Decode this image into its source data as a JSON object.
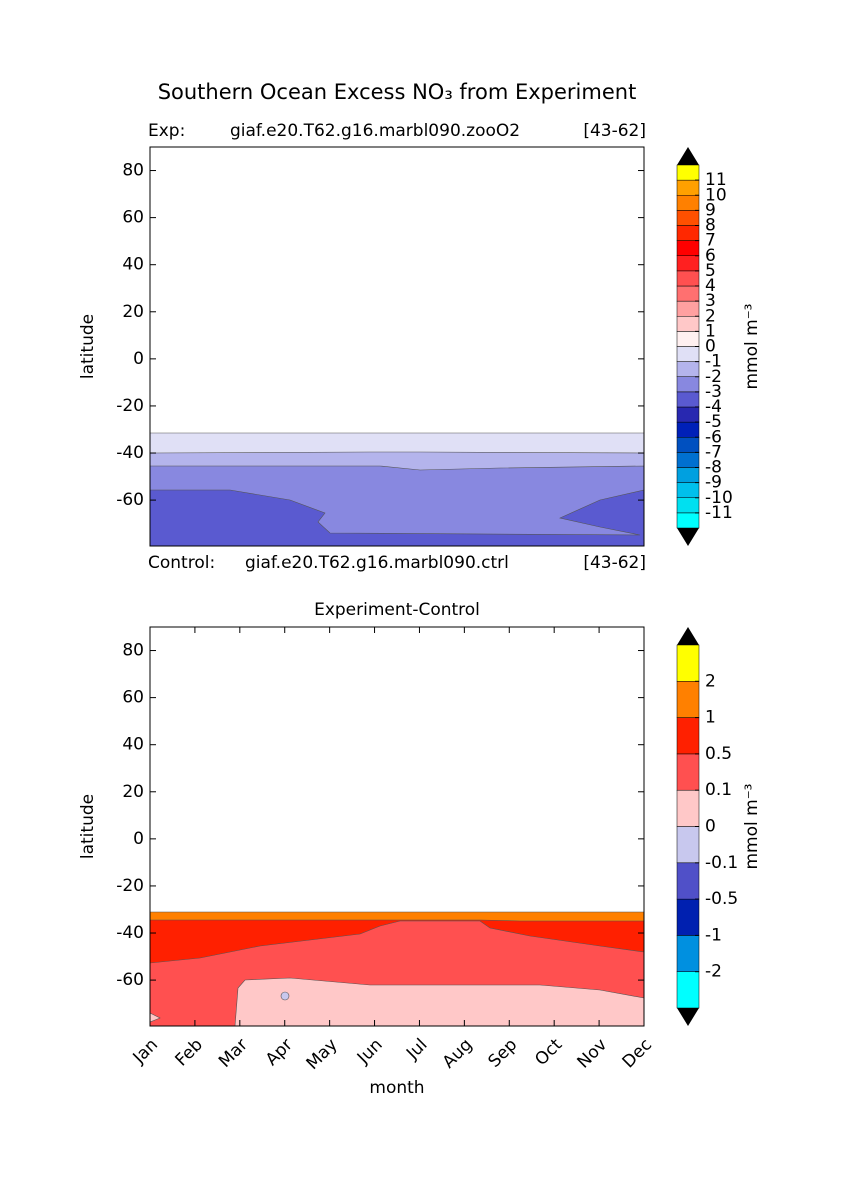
{
  "suptitle": "Southern Ocean Excess NO₃ from Experiment",
  "chart_data": [
    {
      "type": "contour",
      "exp_label": "Exp:",
      "exp_case": "giaf.e20.T62.g16.marbl090.zooO2",
      "exp_years": "[43-62]",
      "ctrl_label": "Control:",
      "ctrl_case": "giaf.e20.T62.g16.marbl090.ctrl",
      "ctrl_years": "[43-62]",
      "ylabel": "latitude",
      "ylim": [
        -79.5,
        90
      ],
      "yticks": [
        80,
        60,
        40,
        20,
        0,
        -20,
        -40,
        -60
      ],
      "colorbar": {
        "label": "mmol m⁻³",
        "levels": [
          -11,
          -10,
          -9,
          -8,
          -7,
          -6,
          -5,
          -4,
          -3,
          -2,
          -1,
          0,
          1,
          2,
          3,
          4,
          5,
          6,
          7,
          8,
          9,
          10,
          11
        ],
        "colors": [
          "#00ffff",
          "#00e0f0",
          "#00c0ec",
          "#00a0e0",
          "#0070d0",
          "#0050c0",
          "#0020b8",
          "#2828b0",
          "#5a5ad0",
          "#8888e0",
          "#b4b4ec",
          "#e0e0f6",
          "#fff0f0",
          "#ffc8c8",
          "#ffa0a0",
          "#ff7070",
          "#ff5050",
          "#ff2020",
          "#ff0000",
          "#ff2800",
          "#ff5000",
          "#ff8000",
          "#ffa000",
          "#ffff00"
        ]
      }
    },
    {
      "type": "contour",
      "title": "Experiment-Control",
      "ylabel": "latitude",
      "xlabel": "month",
      "categories": [
        "Jan",
        "Feb",
        "Mar",
        "Apr",
        "May",
        "Jun",
        "Jul",
        "Aug",
        "Sep",
        "Oct",
        "Nov",
        "Dec"
      ],
      "ylim": [
        -79.5,
        90
      ],
      "yticks": [
        80,
        60,
        40,
        20,
        0,
        -20,
        -40,
        -60
      ],
      "colorbar": {
        "label": "mmol m⁻³",
        "levels": [
          -2,
          -1,
          -0.5,
          -0.1,
          0,
          0.1,
          0.5,
          1,
          2
        ],
        "colors": [
          "#00ffff",
          "#0090e0",
          "#0020b0",
          "#5050c8",
          "#c8c8ee",
          "#ffc8c8",
          "#ff5050",
          "#ff2000",
          "#ff8000",
          "#ffff00"
        ]
      }
    }
  ]
}
